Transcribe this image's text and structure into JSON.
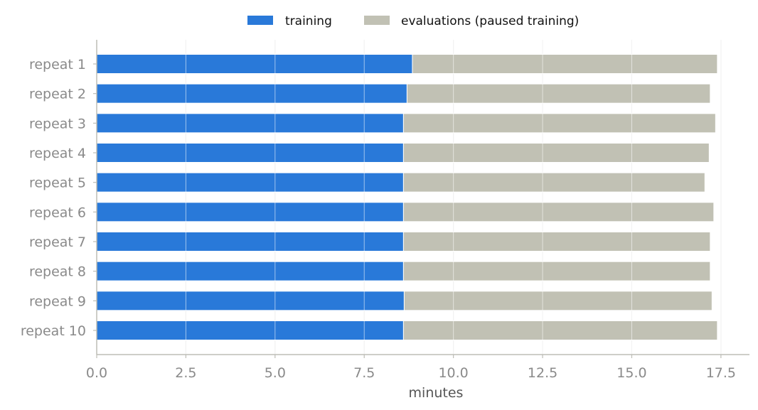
{
  "chart_data": {
    "type": "bar",
    "orientation": "horizontal",
    "stacked": true,
    "categories": [
      "repeat 1",
      "repeat 2",
      "repeat 3",
      "repeat 4",
      "repeat 5",
      "repeat 6",
      "repeat 7",
      "repeat 8",
      "repeat 9",
      "repeat 10"
    ],
    "series": [
      {
        "name": "training",
        "color": "#2979d9",
        "values": [
          8.85,
          8.7,
          8.6,
          8.6,
          8.6,
          8.6,
          8.6,
          8.6,
          8.62,
          8.6
        ]
      },
      {
        "name": "evaluations (paused training)",
        "color": "#c1c1b4",
        "values": [
          8.55,
          8.5,
          8.75,
          8.57,
          8.45,
          8.7,
          8.6,
          8.6,
          8.63,
          8.8
        ]
      }
    ],
    "xlabel": "minutes",
    "ylabel": "",
    "title": "",
    "xlim": [
      0,
      18.3
    ],
    "xticks": [
      0,
      2.5,
      5,
      7.5,
      10,
      12.5,
      15,
      17.5
    ],
    "xtick_labels": [
      "0.0",
      "2.5",
      "5.0",
      "7.5",
      "10.0",
      "12.5",
      "15.0",
      "17.5"
    ],
    "grid": "vertical",
    "legend_position": "top-center"
  }
}
